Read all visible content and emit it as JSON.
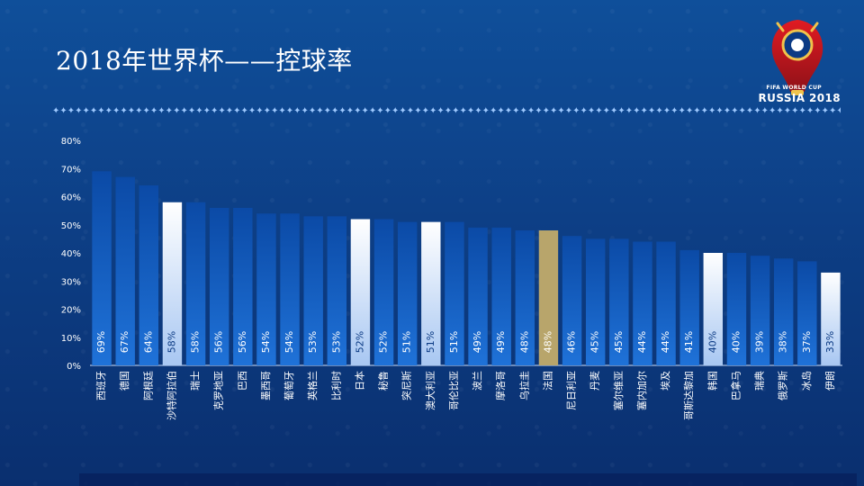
{
  "page": {
    "title": "2018年世界杯——控球率"
  },
  "logo": {
    "line1": "FIFA WORLD CUP",
    "line2": "RUSSIA 2018",
    "icon": "world-cup-trophy-logo"
  },
  "divider": {
    "glyph": "✦"
  },
  "colors": {
    "bar_gradient_top": "#0b4aa6",
    "bar_gradient_bottom": "#1f72d8",
    "bar_highlight_top": "#ffffff",
    "bar_highlight_bottom": "#a8c7f2",
    "bar_gold": "#b8a56b",
    "axis": "#cfe3ff"
  },
  "chart_data": {
    "type": "bar",
    "ylim": [
      0,
      80
    ],
    "ytick_labels": [
      "0%",
      "10%",
      "20%",
      "30%",
      "40%",
      "50%",
      "60%",
      "70%",
      "80%"
    ],
    "yticks": [
      0,
      10,
      20,
      30,
      40,
      50,
      60,
      70,
      80
    ],
    "categories": [
      "西班牙",
      "德国",
      "阿根廷",
      "沙特阿拉伯",
      "瑞士",
      "克罗地亚",
      "巴西",
      "墨西哥",
      "葡萄牙",
      "英格兰",
      "比利时",
      "日本",
      "秘鲁",
      "突尼斯",
      "澳大利亚",
      "哥伦比亚",
      "波兰",
      "摩洛哥",
      "乌拉圭",
      "法国",
      "尼日利亚",
      "丹麦",
      "塞尔维亚",
      "塞内加尔",
      "埃及",
      "哥斯达黎加",
      "韩国",
      "巴拿马",
      "瑞典",
      "俄罗斯",
      "冰岛",
      "伊朗"
    ],
    "values": [
      69,
      67,
      64,
      58,
      58,
      56,
      56,
      54,
      54,
      53,
      53,
      52,
      52,
      51,
      51,
      51,
      49,
      49,
      48,
      48,
      46,
      45,
      45,
      44,
      44,
      41,
      40,
      40,
      39,
      38,
      37,
      33
    ],
    "value_labels": [
      "69%",
      "67%",
      "64%",
      "58%",
      "58%",
      "56%",
      "56%",
      "54%",
      "54%",
      "53%",
      "53%",
      "52%",
      "52%",
      "51%",
      "51%",
      "51%",
      "49%",
      "49%",
      "48%",
      "48%",
      "46%",
      "45%",
      "45%",
      "44%",
      "44%",
      "41%",
      "40%",
      "40%",
      "39%",
      "38%",
      "37%",
      "33%"
    ],
    "highlight_white": [
      "沙特阿拉伯",
      "日本",
      "澳大利亚",
      "韩国",
      "伊朗"
    ],
    "highlight_gold": [
      "法国"
    ],
    "grid": false,
    "legend": "none"
  }
}
